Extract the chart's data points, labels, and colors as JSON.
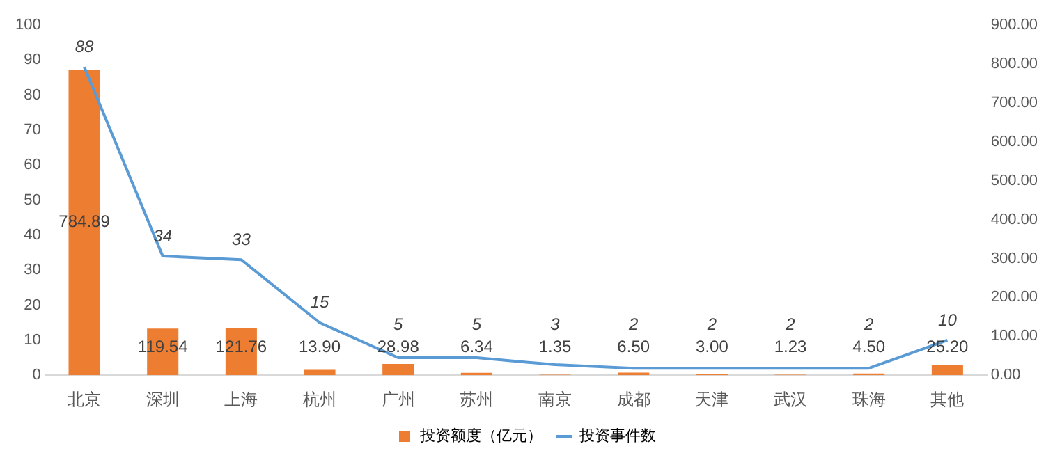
{
  "chart_data": {
    "type": "bar",
    "categories": [
      "北京",
      "深圳",
      "上海",
      "杭州",
      "广州",
      "苏州",
      "南京",
      "成都",
      "天津",
      "武汉",
      "珠海",
      "其他"
    ],
    "series": [
      {
        "name": "投资额度（亿元）",
        "axis": "y2",
        "color": "#ed7d31",
        "values": [
          784.89,
          119.54,
          121.76,
          13.9,
          28.98,
          6.34,
          1.35,
          6.5,
          3.0,
          1.23,
          4.5,
          25.2
        ],
        "value_labels": [
          "784.89",
          "119.54",
          "121.76",
          "13.90",
          "28.98",
          "6.34",
          "1.35",
          "6.50",
          "3.00",
          "1.23",
          "4.50",
          "25.20"
        ]
      },
      {
        "name": "投资事件数",
        "type": "line",
        "color": "#5b9bd5",
        "values": [
          88,
          34,
          33,
          15,
          5,
          5,
          3,
          2,
          2,
          2,
          2,
          10
        ],
        "value_labels": [
          "88",
          "34",
          "33",
          "15",
          "5",
          "5",
          "3",
          "2",
          "2",
          "2",
          "2",
          "10"
        ]
      }
    ],
    "ylim": [
      0,
      100
    ],
    "yticks": [
      0,
      10,
      20,
      30,
      40,
      50,
      60,
      70,
      80,
      90,
      100
    ],
    "y2lim": [
      0,
      900
    ],
    "y2ticks": [
      {
        "value": 0,
        "label": "0.00"
      },
      {
        "value": 100,
        "label": "100.00"
      },
      {
        "value": 200,
        "label": "200.00"
      },
      {
        "value": 300,
        "label": "300.00"
      },
      {
        "value": 400,
        "label": "400.00"
      },
      {
        "value": 500,
        "label": "500.00"
      },
      {
        "value": 600,
        "label": "600.00"
      },
      {
        "value": 700,
        "label": "700.00"
      },
      {
        "value": 800,
        "label": "800.00"
      },
      {
        "value": 900,
        "label": "900.00"
      }
    ],
    "grid": false,
    "legend": "bottom",
    "marker": "none"
  }
}
